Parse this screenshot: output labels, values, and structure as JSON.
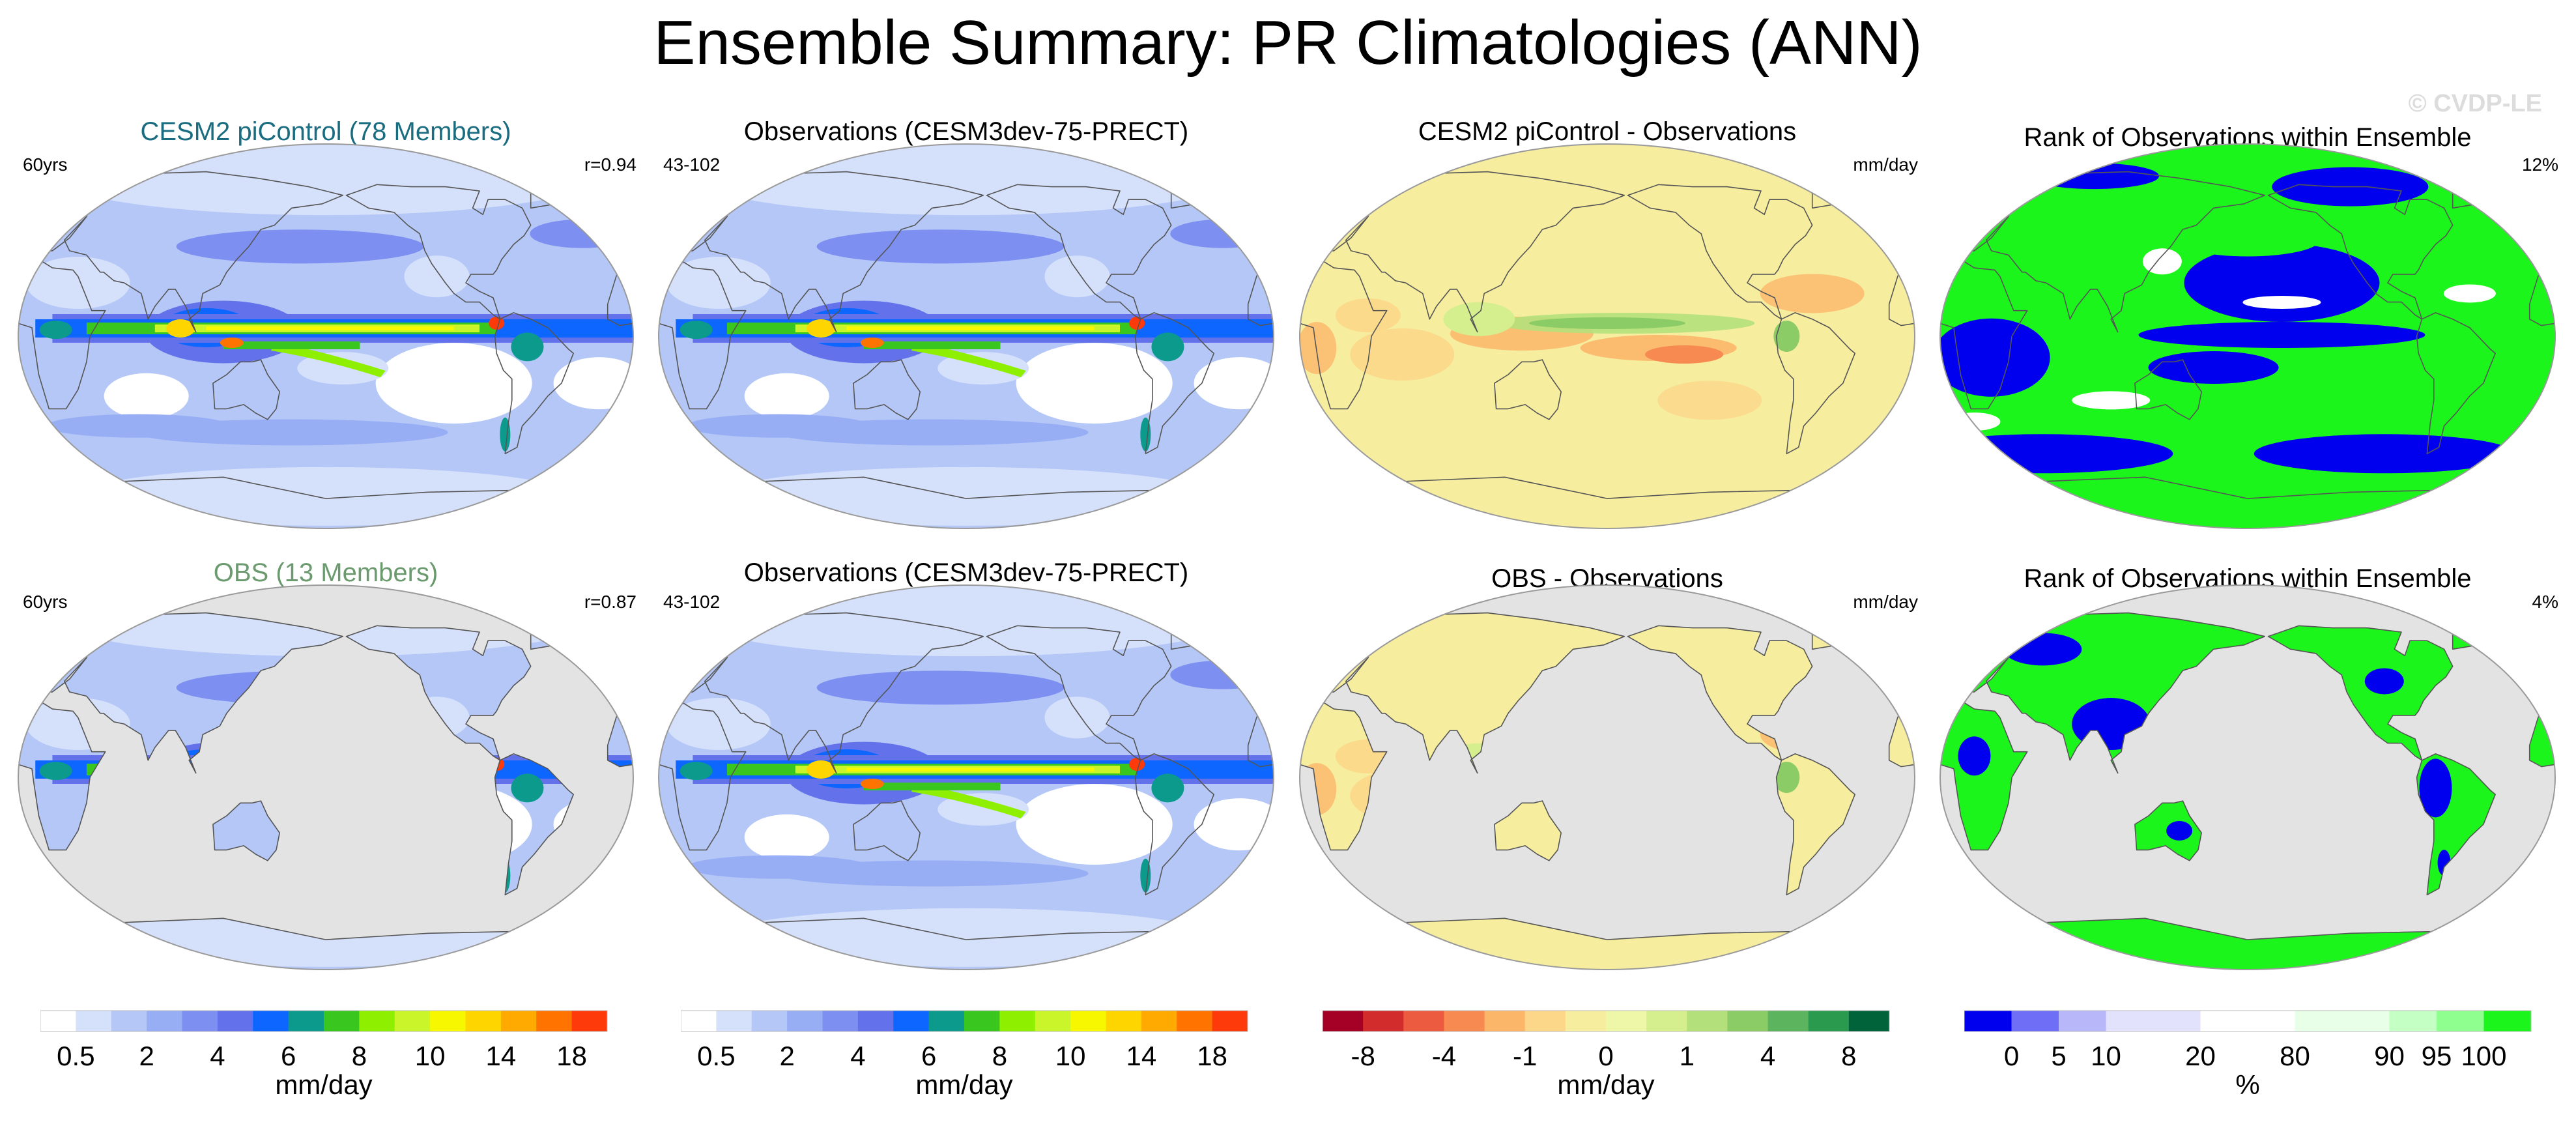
{
  "title": "Ensemble Summary: PR Climatologies (ANN)",
  "watermark": "© CVDP-LE",
  "colors": {
    "model_title": "#1a6c80",
    "obs_title": "#6a9a6e",
    "land_mask": "#e3e3e3",
    "coast": "#555555"
  },
  "icons": {
    "maps": "robinson-globe-map"
  },
  "panels": [
    {
      "id": "cesm2-clim",
      "title": "CESM2 piControl (78 Members)",
      "left": "60yrs",
      "right": "r=0.94",
      "map": "precip",
      "mask": false
    },
    {
      "id": "obs-clim-1",
      "title": "Observations (CESM3dev-75-PRECT)",
      "left": "43-102",
      "right": "",
      "map": "precip",
      "mask": false
    },
    {
      "id": "cesm2-diff",
      "title": "CESM2 piControl - Observations",
      "left": "",
      "right": "mm/day",
      "map": "diff",
      "mask": false
    },
    {
      "id": "rank-1",
      "title": "Rank of Observations within Ensemble",
      "left": "",
      "right": "12%",
      "map": "rank",
      "mask": false
    },
    {
      "id": "obs-ens-clim",
      "title": "OBS (13 Members)",
      "left": "60yrs",
      "right": "r=0.87",
      "map": "precip",
      "mask": true
    },
    {
      "id": "obs-clim-2",
      "title": "Observations (CESM3dev-75-PRECT)",
      "left": "43-102",
      "right": "",
      "map": "precip",
      "mask": false
    },
    {
      "id": "obs-diff",
      "title": "OBS - Observations",
      "left": "",
      "right": "mm/day",
      "map": "diff",
      "mask": true
    },
    {
      "id": "rank-2",
      "title": "Rank of Observations within Ensemble",
      "left": "",
      "right": "4%",
      "map": "rank",
      "mask": true
    }
  ],
  "colorbars": [
    {
      "id": "precip-1",
      "unit": "mm/day",
      "colors": [
        "#ffffff",
        "#d5e0fb",
        "#b4c7f7",
        "#98aef4",
        "#7d8ff0",
        "#6372ea",
        "#0c66ff",
        "#0c9a8c",
        "#39c61e",
        "#8ef000",
        "#c9f52a",
        "#f7f700",
        "#ffd500",
        "#ffaa00",
        "#ff7300",
        "#ff3a0a"
      ],
      "labels": [
        {
          "text": "0.5",
          "b": 1
        },
        {
          "text": "2",
          "b": 3
        },
        {
          "text": "4",
          "b": 5
        },
        {
          "text": "6",
          "b": 7
        },
        {
          "text": "8",
          "b": 9
        },
        {
          "text": "10",
          "b": 11
        },
        {
          "text": "14",
          "b": 13
        },
        {
          "text": "18",
          "b": 15
        }
      ]
    },
    {
      "id": "precip-2",
      "unit": "mm/day",
      "colors": [
        "#ffffff",
        "#d5e0fb",
        "#b4c7f7",
        "#98aef4",
        "#7d8ff0",
        "#6372ea",
        "#0c66ff",
        "#0c9a8c",
        "#39c61e",
        "#8ef000",
        "#c9f52a",
        "#f7f700",
        "#ffd500",
        "#ffaa00",
        "#ff7300",
        "#ff3a0a"
      ],
      "labels": [
        {
          "text": "0.5",
          "b": 1
        },
        {
          "text": "2",
          "b": 3
        },
        {
          "text": "4",
          "b": 5
        },
        {
          "text": "6",
          "b": 7
        },
        {
          "text": "8",
          "b": 9
        },
        {
          "text": "10",
          "b": 11
        },
        {
          "text": "14",
          "b": 13
        },
        {
          "text": "18",
          "b": 15
        }
      ]
    },
    {
      "id": "diff",
      "unit": "mm/day",
      "colors": [
        "#a50026",
        "#d22c2c",
        "#ec5b3f",
        "#f78a50",
        "#fcb66a",
        "#fdd789",
        "#f6ed9f",
        "#eef7a8",
        "#d5ee8e",
        "#b4e07b",
        "#8ccc66",
        "#5cb55e",
        "#2a9a4e",
        "#00633a"
      ],
      "labels": [
        {
          "text": "-8",
          "b": 1
        },
        {
          "text": "-4",
          "b": 3
        },
        {
          "text": "-1",
          "b": 5
        },
        {
          "text": "0",
          "b": 7
        },
        {
          "text": "1",
          "b": 9
        },
        {
          "text": "4",
          "b": 11
        },
        {
          "text": "8",
          "b": 13
        }
      ]
    },
    {
      "id": "rank",
      "unit": "%",
      "colors": [
        "#0000ee",
        "#6e6ef6",
        "#b7b7fa",
        "#e2e2fd",
        "#e2e2fd",
        "#ffffff",
        "#ffffff",
        "#e8ffe8",
        "#e8ffe8",
        "#c4ffc4",
        "#8fff8f",
        "#1cf51c"
      ],
      "labels": [
        {
          "text": "0",
          "b": 1
        },
        {
          "text": "5",
          "b": 2
        },
        {
          "text": "10",
          "b": 3
        },
        {
          "text": "20",
          "b": 5
        },
        {
          "text": "80",
          "b": 7
        },
        {
          "text": "90",
          "b": 9
        },
        {
          "text": "95",
          "b": 10
        },
        {
          "text": "100",
          "b": 11
        }
      ]
    }
  ],
  "chart_data": {
    "type": "heatmap",
    "description_type": "multi-panel global maps with filled contours",
    "variable": "PR",
    "season": "ANN",
    "pattern_correlations": [
      {
        "panel": "CESM2 piControl (78 Members)",
        "r": 0.94
      },
      {
        "panel": "OBS (13 Members)",
        "r": 0.87
      }
    ],
    "rank_fraction_pct": [
      {
        "row": 1,
        "value": 12
      },
      {
        "row": 2,
        "value": 4
      }
    ],
    "colorbar_levels": {
      "precip_mm_per_day": [
        0.5,
        1,
        2,
        3,
        4,
        5,
        6,
        7,
        8,
        9,
        10,
        12,
        14,
        16,
        18
      ],
      "difference_mm_per_day": [
        -8,
        -6,
        -4,
        -2,
        -1,
        -0.5,
        0,
        0.5,
        1,
        2,
        4,
        6,
        8
      ],
      "rank_pct": [
        0,
        5,
        10,
        20,
        80,
        90,
        95,
        100
      ]
    }
  }
}
